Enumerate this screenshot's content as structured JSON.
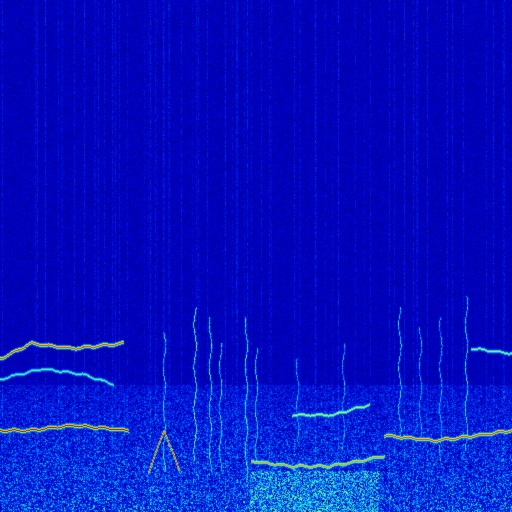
{
  "chart_data": {
    "type": "heatmap",
    "title": "",
    "xlabel": "",
    "ylabel": "",
    "axes_visible": false,
    "colormap": "jet",
    "colormap_stops": [
      "#00007a",
      "#0000c8",
      "#0040ff",
      "#00b0ff",
      "#40ffc0",
      "#c0ff40",
      "#ffd000",
      "#ff4000",
      "#a00000"
    ],
    "background_intensity": 0.1,
    "time_range": [
      0,
      1
    ],
    "freq_range": [
      0,
      1
    ],
    "noise_floor_band": {
      "freq_range": [
        0,
        0.25
      ],
      "intensity": 0.3
    },
    "broadband_bursts": [
      {
        "time_range": [
          0.49,
          0.74
        ],
        "freq_range": [
          0,
          0.08
        ],
        "intensity": 0.45
      }
    ],
    "harmonic_tracks": [
      {
        "name": "",
        "points": [
          [
            0.0,
            0.3
          ],
          [
            0.06,
            0.33
          ],
          [
            0.14,
            0.32
          ],
          [
            0.24,
            0.33
          ]
        ],
        "intensity": 0.9
      },
      {
        "name": "",
        "points": [
          [
            0.0,
            0.16
          ],
          [
            0.06,
            0.16
          ],
          [
            0.14,
            0.17
          ],
          [
            0.25,
            0.16
          ]
        ],
        "intensity": 1.0
      },
      {
        "name": "",
        "points": [
          [
            0.0,
            0.26
          ],
          [
            0.08,
            0.28
          ],
          [
            0.16,
            0.27
          ],
          [
            0.22,
            0.25
          ]
        ],
        "intensity": 0.55
      },
      {
        "name": "",
        "points": [
          [
            0.29,
            0.08
          ],
          [
            0.32,
            0.16
          ],
          [
            0.35,
            0.08
          ]
        ],
        "intensity": 0.85
      },
      {
        "name": "",
        "points": [
          [
            0.49,
            0.1
          ],
          [
            0.57,
            0.09
          ],
          [
            0.64,
            0.09
          ],
          [
            0.7,
            0.1
          ],
          [
            0.75,
            0.11
          ]
        ],
        "intensity": 0.8
      },
      {
        "name": "",
        "points": [
          [
            0.57,
            0.19
          ],
          [
            0.65,
            0.19
          ],
          [
            0.72,
            0.21
          ]
        ],
        "intensity": 0.65
      },
      {
        "name": "",
        "points": [
          [
            0.75,
            0.15
          ],
          [
            0.85,
            0.14
          ],
          [
            0.93,
            0.15
          ],
          [
            1.0,
            0.16
          ]
        ],
        "intensity": 0.9
      },
      {
        "name": "",
        "points": [
          [
            0.92,
            0.32
          ],
          [
            1.0,
            0.31
          ]
        ],
        "intensity": 0.6
      }
    ],
    "vertical_streaks": [
      {
        "time": 0.32,
        "freq_range": [
          0.08,
          0.35
        ],
        "intensity": 0.45
      },
      {
        "time": 0.38,
        "freq_range": [
          0.1,
          0.4
        ],
        "intensity": 0.55
      },
      {
        "time": 0.41,
        "freq_range": [
          0.08,
          0.38
        ],
        "intensity": 0.5
      },
      {
        "time": 0.43,
        "freq_range": [
          0.08,
          0.33
        ],
        "intensity": 0.45
      },
      {
        "time": 0.48,
        "freq_range": [
          0.06,
          0.38
        ],
        "intensity": 0.5
      },
      {
        "time": 0.5,
        "freq_range": [
          0.1,
          0.32
        ],
        "intensity": 0.45
      },
      {
        "time": 0.58,
        "freq_range": [
          0.14,
          0.3
        ],
        "intensity": 0.4
      },
      {
        "time": 0.67,
        "freq_range": [
          0.12,
          0.33
        ],
        "intensity": 0.4
      },
      {
        "time": 0.78,
        "freq_range": [
          0.15,
          0.4
        ],
        "intensity": 0.45
      },
      {
        "time": 0.82,
        "freq_range": [
          0.14,
          0.36
        ],
        "intensity": 0.4
      },
      {
        "time": 0.86,
        "freq_range": [
          0.1,
          0.38
        ],
        "intensity": 0.4
      },
      {
        "time": 0.91,
        "freq_range": [
          0.12,
          0.42
        ],
        "intensity": 0.45
      }
    ]
  }
}
